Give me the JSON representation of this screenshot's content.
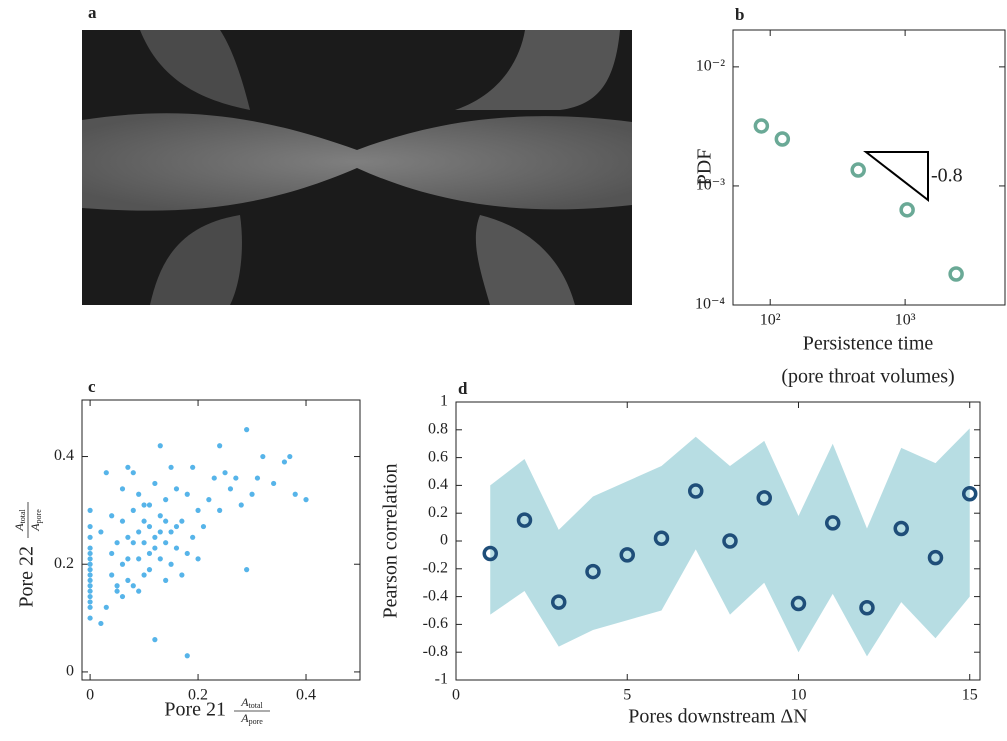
{
  "chart_data": [
    {
      "type": "image",
      "panel_label": "a"
    },
    {
      "type": "scatter",
      "panel_label": "b",
      "log_x": true,
      "log_y": true,
      "x": [
        86,
        123,
        449,
        1035,
        2388
      ],
      "values": [
        0.00319,
        0.00248,
        0.00136,
        0.00063,
        0.000182
      ],
      "color": "#6aa996",
      "xlim": [
        53,
        5500
      ],
      "ylim": [
        0.0001,
        0.0204
      ],
      "xticks": [
        {
          "value": 100,
          "label": "10²"
        },
        {
          "value": 1000,
          "label": "10³"
        }
      ],
      "yticks": [
        {
          "value": 0.0001,
          "label": "10⁻⁴"
        },
        {
          "value": 0.001,
          "label": "10⁻³"
        },
        {
          "value": 0.01,
          "label": "10⁻²"
        }
      ],
      "y_label": "PDF",
      "x_label": [
        "Persistence time",
        "(pore throat volumes)"
      ],
      "annotation": "-0.8"
    },
    {
      "type": "scatter",
      "panel_label": "c",
      "color": "#56b4e9",
      "x": [
        0,
        0,
        0,
        0,
        0,
        0,
        0,
        0,
        0,
        0,
        0,
        0,
        0,
        0,
        0,
        0,
        0.02,
        0.03,
        0.03,
        0.04,
        0.04,
        0.05,
        0.05,
        0.06,
        0.06,
        0.06,
        0.07,
        0.07,
        0.07,
        0.08,
        0.08,
        0.08,
        0.09,
        0.09,
        0.09,
        0.1,
        0.1,
        0.1,
        0.11,
        0.11,
        0.11,
        0.12,
        0.12,
        0.12,
        0.13,
        0.13,
        0.13,
        0.14,
        0.14,
        0.14,
        0.15,
        0.15,
        0.15,
        0.16,
        0.16,
        0.17,
        0.17,
        0.18,
        0.18,
        0.18,
        0.19,
        0.19,
        0.2,
        0.21,
        0.22,
        0.23,
        0.24,
        0.24,
        0.25,
        0.26,
        0.27,
        0.28,
        0.29,
        0.29,
        0.3,
        0.31,
        0.32,
        0.34,
        0.36,
        0.37,
        0.38,
        0.4,
        0.05,
        0.07,
        0.09,
        0.12,
        0.13,
        0.16,
        0.02,
        0.04,
        0.06,
        0.11,
        0.2,
        0.1,
        0.08,
        0.14
      ],
      "values": [
        0.1,
        0.13,
        0.15,
        0.16,
        0.17,
        0.18,
        0.19,
        0.2,
        0.21,
        0.22,
        0.23,
        0.25,
        0.27,
        0.3,
        0.14,
        0.12,
        0.09,
        0.37,
        0.12,
        0.18,
        0.22,
        0.15,
        0.16,
        0.14,
        0.2,
        0.28,
        0.38,
        0.17,
        0.25,
        0.16,
        0.3,
        0.37,
        0.21,
        0.26,
        0.33,
        0.18,
        0.24,
        0.31,
        0.22,
        0.27,
        0.19,
        0.06,
        0.25,
        0.35,
        0.42,
        0.21,
        0.29,
        0.24,
        0.32,
        0.17,
        0.26,
        0.38,
        0.2,
        0.23,
        0.34,
        0.28,
        0.18,
        0.03,
        0.33,
        0.22,
        0.25,
        0.38,
        0.3,
        0.27,
        0.32,
        0.36,
        0.42,
        0.3,
        0.37,
        0.34,
        0.36,
        0.31,
        0.45,
        0.19,
        0.33,
        0.36,
        0.4,
        0.35,
        0.39,
        0.4,
        0.33,
        0.32,
        0.24,
        0.21,
        0.15,
        0.23,
        0.26,
        0.27,
        0.26,
        0.29,
        0.34,
        0.31,
        0.21,
        0.28,
        0.24,
        0.28
      ],
      "xlim": [
        -0.015,
        0.5
      ],
      "ylim": [
        -0.015,
        0.505
      ],
      "xticks": [
        0,
        0.2,
        0.4
      ],
      "yticks": [
        0,
        0.2,
        0.4
      ],
      "x_label": {
        "text": "Pore 21",
        "num": [
          "A",
          "total"
        ],
        "den": [
          "A",
          "pore"
        ]
      },
      "y_label": {
        "text": "Pore 22",
        "num": [
          "A",
          "total"
        ],
        "den": [
          "A",
          "pore"
        ]
      }
    },
    {
      "type": "band_scatter",
      "panel_label": "d",
      "color": "#1f4e79",
      "band_color": "#b7dde3",
      "x": [
        1,
        2,
        3,
        4,
        5,
        6,
        7,
        8,
        9,
        10,
        11,
        12,
        13,
        14,
        15
      ],
      "values": [
        -0.09,
        0.15,
        -0.44,
        -0.22,
        -0.1,
        0.02,
        0.36,
        0.0,
        0.31,
        -0.45,
        0.13,
        -0.48,
        0.09,
        -0.12,
        0.34
      ],
      "upper": [
        0.4,
        0.59,
        0.08,
        0.32,
        0.43,
        0.54,
        0.75,
        0.54,
        0.72,
        0.18,
        0.7,
        0.09,
        0.67,
        0.56,
        0.81
      ],
      "lower": [
        -0.53,
        -0.36,
        -0.76,
        -0.64,
        -0.57,
        -0.5,
        -0.06,
        -0.53,
        -0.3,
        -0.8,
        -0.38,
        -0.83,
        -0.44,
        -0.7,
        -0.4
      ],
      "xlim": [
        0,
        15.3
      ],
      "ylim": [
        -1,
        1
      ],
      "xticks": [
        0,
        5,
        10,
        15
      ],
      "yticks": [
        -1,
        -0.8,
        -0.6,
        -0.4,
        -0.2,
        0,
        0.2,
        0.4,
        0.6,
        0.8,
        1
      ],
      "x_label": "Pores downstream ΔN",
      "y_label": "Pearson correlation"
    }
  ]
}
